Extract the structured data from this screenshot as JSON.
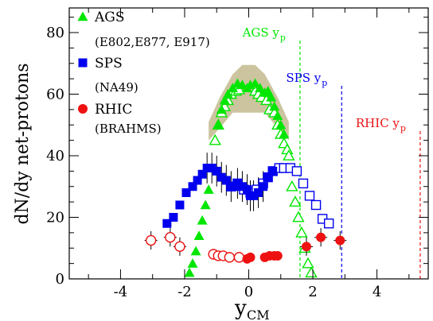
{
  "chart_data": {
    "type": "scatter",
    "xlabel": "y",
    "xlabel_sub": "CM",
    "ylabel": "dN/dy net-protons",
    "xlim": [
      -5.6,
      5.6
    ],
    "ylim": [
      0,
      88
    ],
    "xticks": [
      -4,
      -2,
      0,
      2,
      4
    ],
    "yticks": [
      0,
      20,
      40,
      60,
      80
    ],
    "legend_position": "top-left",
    "series": [
      {
        "name": "AGS",
        "subtitle": "(E802,E877, E917)",
        "color": "#00e600",
        "marker": "triangle",
        "filled_points": [
          [
            -1.85,
            2
          ],
          [
            -1.75,
            5
          ],
          [
            -1.65,
            9
          ],
          [
            -1.55,
            14
          ],
          [
            -1.45,
            19
          ],
          [
            -1.35,
            24
          ],
          [
            -1.25,
            29
          ],
          [
            -0.95,
            50
          ],
          [
            -0.85,
            55
          ],
          [
            -0.75,
            58
          ],
          [
            -0.65,
            60
          ],
          [
            -0.5,
            62
          ],
          [
            -0.35,
            63.5
          ],
          [
            -0.2,
            63
          ],
          [
            -0.05,
            62
          ],
          [
            0.05,
            63
          ],
          [
            0.2,
            63.5
          ],
          [
            0.35,
            62
          ],
          [
            0.5,
            60.5
          ],
          [
            0.6,
            61
          ],
          [
            0.7,
            59
          ],
          [
            0.8,
            56
          ],
          [
            0.9,
            53
          ],
          [
            1.0,
            50
          ],
          [
            1.1,
            47
          ]
        ],
        "open_points": [
          [
            -1.05,
            45
          ],
          [
            -0.95,
            50
          ],
          [
            -0.85,
            54
          ],
          [
            -0.75,
            56
          ],
          [
            -0.65,
            58
          ],
          [
            -0.55,
            60
          ],
          [
            -0.4,
            61
          ],
          [
            -0.3,
            61.5
          ],
          [
            0.2,
            61
          ],
          [
            0.3,
            60
          ],
          [
            0.4,
            59
          ],
          [
            0.55,
            58
          ],
          [
            0.65,
            55
          ],
          [
            0.8,
            54
          ],
          [
            0.9,
            50
          ],
          [
            1.0,
            47
          ],
          [
            1.1,
            44
          ],
          [
            1.2,
            42
          ],
          [
            1.25,
            40
          ],
          [
            1.35,
            30
          ],
          [
            1.45,
            25
          ],
          [
            1.55,
            20
          ],
          [
            1.65,
            15
          ],
          [
            1.75,
            10
          ],
          [
            1.85,
            5
          ],
          [
            1.95,
            2
          ]
        ],
        "band_upper": [
          [
            -1.25,
            51
          ],
          [
            -0.9,
            59
          ],
          [
            -0.5,
            66.5
          ],
          [
            -0.2,
            69.5
          ],
          [
            0.2,
            69.5
          ],
          [
            0.5,
            66.5
          ],
          [
            0.9,
            59
          ],
          [
            1.25,
            51
          ]
        ],
        "band_lower": [
          [
            -1.25,
            45
          ],
          [
            -0.9,
            49
          ],
          [
            -0.5,
            54
          ],
          [
            0.5,
            54
          ],
          [
            0.9,
            49
          ],
          [
            1.25,
            45
          ]
        ]
      },
      {
        "name": "SPS",
        "subtitle": "(NA49)",
        "color": "#0000ee",
        "marker": "square",
        "filled_points": [
          [
            -2.55,
            18
          ],
          [
            -2.35,
            20
          ],
          [
            -2.15,
            24
          ],
          [
            -1.95,
            28
          ],
          [
            -1.75,
            30
          ],
          [
            -1.6,
            32
          ],
          [
            -1.45,
            34
          ],
          [
            -1.3,
            36
          ],
          [
            -1.15,
            36
          ],
          [
            -1.0,
            35
          ],
          [
            -0.85,
            33
          ],
          [
            -0.7,
            32
          ],
          [
            -0.55,
            30
          ],
          [
            -0.45,
            30
          ],
          [
            -0.35,
            31
          ],
          [
            -0.2,
            30
          ],
          [
            -0.05,
            29
          ],
          [
            0.05,
            27
          ],
          [
            0.15,
            27
          ],
          [
            0.3,
            28
          ],
          [
            0.45,
            30
          ],
          [
            0.6,
            33
          ],
          [
            0.75,
            35
          ]
        ],
        "open_points": [
          [
            -0.55,
            30
          ],
          [
            -0.35,
            31
          ],
          [
            -0.15,
            29
          ],
          [
            0.05,
            28
          ],
          [
            0.25,
            29
          ],
          [
            0.45,
            31
          ],
          [
            0.6,
            33
          ],
          [
            0.75,
            35
          ],
          [
            0.95,
            36
          ],
          [
            1.1,
            36
          ],
          [
            1.3,
            36
          ],
          [
            1.5,
            35
          ],
          [
            1.7,
            31
          ],
          [
            1.9,
            27
          ],
          [
            2.1,
            24
          ],
          [
            2.3,
            19.5
          ],
          [
            2.5,
            18
          ]
        ],
        "errors_y": [
          -1.3,
          -1.15,
          -1.0,
          -0.85,
          -0.7,
          -0.55,
          -0.35,
          -0.2,
          -0.05,
          0.05,
          0.15,
          0.3,
          0.45
        ]
      },
      {
        "name": "RHIC",
        "subtitle": "(BRAHMS)",
        "color": "#ee1111",
        "marker": "circle",
        "filled_points": [
          [
            -0.05,
            6.5
          ],
          [
            0.05,
            7
          ],
          [
            0.5,
            7
          ],
          [
            0.65,
            7.5
          ],
          [
            0.8,
            7.5
          ],
          [
            0.9,
            7.5
          ],
          [
            1.8,
            10.5
          ],
          [
            2.25,
            13.5
          ],
          [
            2.85,
            12.5
          ]
        ],
        "open_points": [
          [
            -3.05,
            12.5
          ],
          [
            -2.45,
            13.5
          ],
          [
            -2.15,
            10.5
          ],
          [
            -1.1,
            8
          ],
          [
            -0.95,
            7.5
          ],
          [
            -0.8,
            7.5
          ],
          [
            -0.6,
            7
          ],
          [
            -0.3,
            7
          ]
        ]
      }
    ],
    "beam_lines": [
      {
        "label": "AGS",
        "sub": "p",
        "x": 1.6,
        "color": "#00e600"
      },
      {
        "label": "SPS",
        "sub": "p",
        "x": 2.9,
        "color": "#0000ee"
      },
      {
        "label": "RHIC",
        "sub": "p",
        "x": 5.35,
        "color": "#ee1111"
      }
    ]
  }
}
